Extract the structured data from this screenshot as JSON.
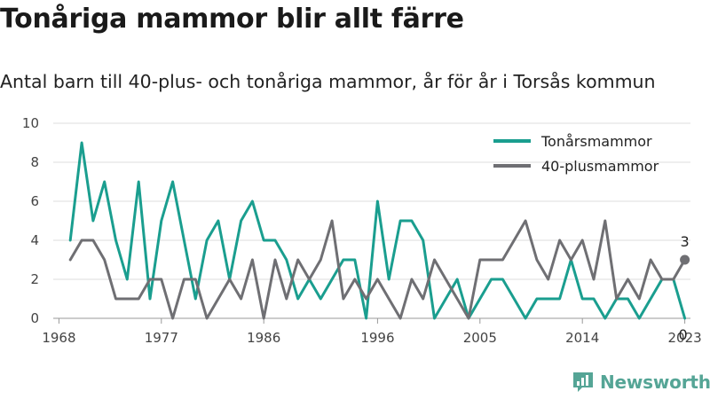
{
  "header": {
    "title": "Tonåriga mammor blir allt färre",
    "subtitle": "Antal barn till 40-plus- och tonåriga mammor, år för år i Torsås kommun"
  },
  "brand": {
    "name": "Newsworthy",
    "icon": "bar-chart-logo-icon",
    "color": "#55a596"
  },
  "chart_data": {
    "type": "line",
    "title": "Tonåriga mammor blir allt färre",
    "subtitle": "Antal barn till 40-plus- och tonåriga mammor, år för år i Torsås kommun",
    "xlabel": "",
    "ylabel": "",
    "x_ticks": [
      "1968",
      "1977",
      "1986",
      "1996",
      "2005",
      "2014",
      "2023"
    ],
    "y_ticks": [
      "0",
      "2",
      "4",
      "6",
      "8",
      "10"
    ],
    "ylim": [
      0,
      10
    ],
    "xlim": [
      1967.5,
      2023.5
    ],
    "grid": "horizontal",
    "legend_position": "top-right",
    "x": [
      1969,
      1970,
      1971,
      1972,
      1973,
      1974,
      1975,
      1976,
      1977,
      1978,
      1979,
      1980,
      1981,
      1982,
      1983,
      1984,
      1985,
      1986,
      1987,
      1988,
      1989,
      1990,
      1991,
      1992,
      1993,
      1994,
      1995,
      1996,
      1997,
      1998,
      1999,
      2000,
      2001,
      2002,
      2003,
      2004,
      2005,
      2006,
      2007,
      2008,
      2009,
      2010,
      2011,
      2012,
      2013,
      2014,
      2015,
      2016,
      2017,
      2018,
      2019,
      2020,
      2021,
      2022,
      2023
    ],
    "series": [
      {
        "name": "Tonårsmammor",
        "color": "#1a9e8f",
        "values": [
          4,
          9,
          5,
          7,
          4,
          2,
          7,
          1,
          5,
          7,
          4,
          1,
          4,
          5,
          2,
          5,
          6,
          4,
          4,
          3,
          1,
          2,
          1,
          2,
          3,
          3,
          0,
          6,
          2,
          5,
          5,
          4,
          0,
          1,
          2,
          0,
          1,
          2,
          2,
          1,
          0,
          1,
          1,
          1,
          3,
          1,
          1,
          0,
          1,
          1,
          0,
          1,
          2,
          2,
          0
        ],
        "end_label": "0"
      },
      {
        "name": "40-plusmammor",
        "color": "#6f6f73",
        "values": [
          3,
          4,
          4,
          3,
          1,
          1,
          1,
          2,
          2,
          0,
          2,
          2,
          0,
          1,
          2,
          1,
          3,
          0,
          3,
          1,
          3,
          2,
          3,
          5,
          1,
          2,
          1,
          2,
          1,
          0,
          2,
          1,
          3,
          2,
          1,
          0,
          3,
          3,
          3,
          4,
          5,
          3,
          2,
          4,
          3,
          4,
          2,
          5,
          1,
          2,
          1,
          3,
          2,
          2,
          3
        ],
        "end_label": "3"
      }
    ]
  }
}
